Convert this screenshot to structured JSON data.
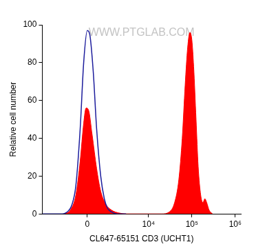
{
  "chart_data": {
    "type": "line",
    "xlabel": "CL647-65151 CD3 (UCHT1)",
    "ylabel": "Relative cell number",
    "annotations": [
      "WWW.PTGLAB.COM"
    ],
    "xlim": [
      -4200,
      1350000
    ],
    "xticks": [
      0,
      {
        "value": 10000,
        "label": "10⁴"
      },
      {
        "value": 100000,
        "label": "10⁵"
      },
      {
        "value": 1000000,
        "label": "10⁶"
      }
    ],
    "ylim": [
      0,
      100
    ],
    "yticks": [
      0,
      20,
      40,
      60,
      80,
      100
    ],
    "grid": false,
    "series": [
      {
        "type": "line",
        "color": "#1c1c9c",
        "x": [
          -4200,
          -1500,
          -1000,
          -700,
          -500,
          -300,
          -150,
          0,
          100,
          250,
          400,
          600,
          800,
          1000,
          1300,
          1800,
          3000
        ],
        "values": [
          0,
          0,
          1,
          5,
          15,
          45,
          80,
          97,
          95,
          75,
          45,
          20,
          8,
          3,
          1,
          0,
          0
        ]
      },
      {
        "type": "area",
        "color": "#ff0000",
        "x": [
          -1200,
          -800,
          -500,
          -300,
          -150,
          -50,
          50,
          200,
          400,
          600,
          900,
          1300,
          2000,
          3000,
          20000,
          30000,
          40000,
          50000,
          60000,
          70000,
          80000,
          90000,
          100000,
          110000,
          125000,
          140000,
          160000,
          180000,
          200000,
          220000,
          250000,
          300000
        ],
        "values": [
          0,
          2,
          10,
          28,
          48,
          56,
          55,
          42,
          24,
          12,
          5,
          2,
          0.5,
          0,
          0,
          1,
          6,
          18,
          40,
          68,
          88,
          96,
          92,
          78,
          50,
          25,
          10,
          6,
          8,
          6,
          2,
          0
        ]
      }
    ]
  }
}
